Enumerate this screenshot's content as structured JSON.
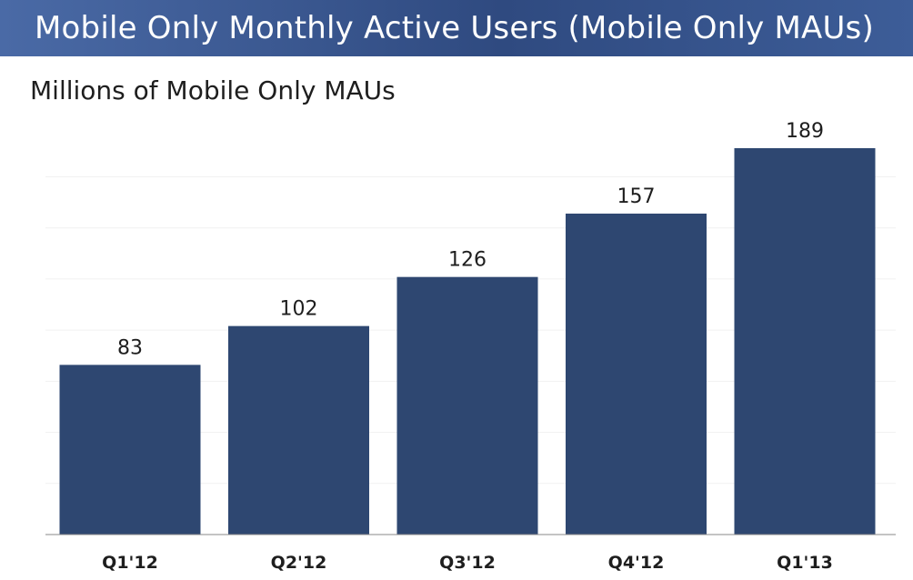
{
  "slide": {
    "title": "Mobile Only Monthly Active Users (Mobile Only MAUs)",
    "header_color": "#3b5998"
  },
  "chart_data": {
    "type": "bar",
    "title": "",
    "subtitle": "Millions of Mobile Only MAUs",
    "categories": [
      "Q1'12",
      "Q2'12",
      "Q3'12",
      "Q4'12",
      "Q1'13"
    ],
    "values": [
      83,
      102,
      126,
      157,
      189
    ],
    "data_labels": [
      "83",
      "102",
      "126",
      "157",
      "189"
    ],
    "xlabel": "",
    "ylabel": "",
    "ylim": [
      0,
      200
    ],
    "grid": false,
    "legend": "none",
    "bar_color": "#2e4771"
  }
}
